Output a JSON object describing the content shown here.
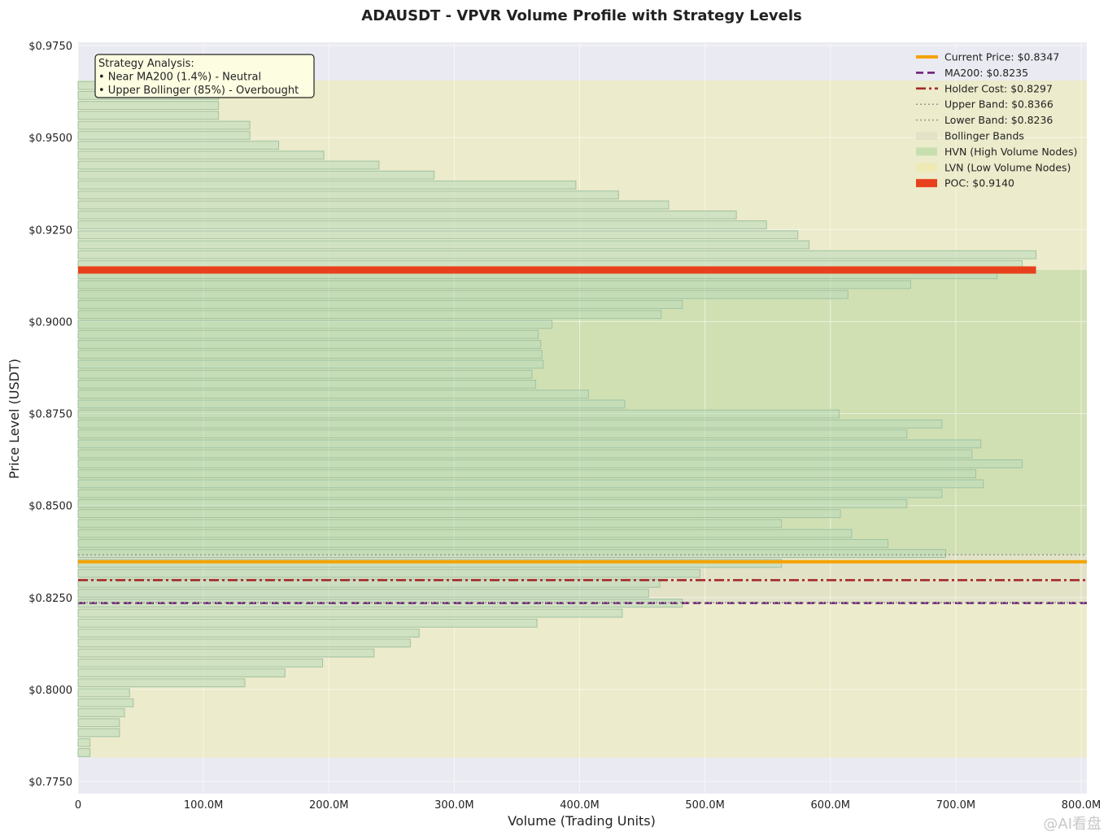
{
  "chart_data": {
    "type": "bar",
    "orientation": "horizontal",
    "title": "ADAUSDT - VPVR Volume Profile with Strategy Levels",
    "xlabel": "Volume (Trading Units)",
    "ylabel": "Price Level (USDT)",
    "xlim": [
      0,
      800
    ],
    "ylim": [
      0.7745,
      0.975
    ],
    "xticks": [
      0,
      100,
      200,
      300,
      400,
      500,
      600,
      700,
      800
    ],
    "xtick_labels": [
      "0",
      "100.0M",
      "200.0M",
      "300.0M",
      "400.0M",
      "500.0M",
      "600.0M",
      "700.0M",
      "800.0M"
    ],
    "yticks": [
      0.975,
      0.95,
      0.925,
      0.9,
      0.875,
      0.85,
      0.825,
      0.8,
      0.775
    ],
    "ytick_labels": [
      "$0.9750",
      "$0.9500",
      "$0.9250",
      "$0.9000",
      "$0.8750",
      "$0.8500",
      "$0.8250",
      "$0.8000",
      "$0.7750"
    ],
    "grid": true,
    "legend_position": "top-right",
    "bins": {
      "price_low": 0.7815,
      "price_high": 0.9655,
      "count": 68,
      "volumes_million": [
        9.5,
        9.5,
        33,
        33,
        37,
        44,
        41,
        133,
        165,
        195,
        236,
        265,
        272,
        366,
        434,
        482,
        455,
        464,
        496,
        561,
        692,
        646,
        617,
        561,
        608,
        661,
        689,
        722,
        716,
        753,
        713,
        720,
        661,
        689,
        607,
        436,
        407,
        365,
        362,
        371,
        370,
        369,
        367,
        378,
        465,
        482,
        614,
        664,
        733,
        753,
        764,
        583,
        574,
        549,
        525,
        471,
        431,
        397,
        284,
        240,
        196,
        160,
        137,
        137,
        112,
        112,
        112,
        112
      ]
    },
    "zones": [
      {
        "name": "LVN (Low Volume Nodes)",
        "from": 0.914,
        "to": 0.9655,
        "color": "#ecebcb"
      },
      {
        "name": "HVN (High Volume Nodes)",
        "from": 0.8366,
        "to": 0.914,
        "color": "#d1e0b3"
      },
      {
        "name": "Bollinger Bands",
        "from": 0.8236,
        "to": 0.8366,
        "color": "#e2e2c7"
      },
      {
        "name": "LVN (Low Volume Nodes)",
        "from": 0.7815,
        "to": 0.8236,
        "color": "#ecebcb"
      }
    ],
    "levels": [
      {
        "key": "poc",
        "label": "POC: $0.9140",
        "price": 0.914,
        "color": "#e8401c",
        "style": "thick"
      },
      {
        "key": "current",
        "label": "Current Price: $0.8347",
        "price": 0.8347,
        "color": "#f5a300",
        "style": "solid"
      },
      {
        "key": "ma200",
        "label": "MA200: $0.8235",
        "price": 0.8235,
        "color": "#701f7a",
        "style": "dashed"
      },
      {
        "key": "holder",
        "label": "Holder Cost: $0.8297",
        "price": 0.8297,
        "color": "#a52a2a",
        "style": "dashdot"
      },
      {
        "key": "upper",
        "label": "Upper Band: $0.8366",
        "price": 0.8366,
        "color": "#8f9a8f",
        "style": "dotted"
      },
      {
        "key": "lower",
        "label": "Lower Band: $0.8236",
        "price": 0.8236,
        "color": "#8f9a8f",
        "style": "dotted"
      }
    ],
    "legend": [
      {
        "label": "Current Price: $0.8347",
        "kind": "line",
        "color": "#f5a300",
        "style": "solid"
      },
      {
        "label": "MA200: $0.8235",
        "kind": "line",
        "color": "#701f7a",
        "style": "dashed"
      },
      {
        "label": "Holder Cost: $0.8297",
        "kind": "line",
        "color": "#a52a2a",
        "style": "dashdot"
      },
      {
        "label": "Upper Band: $0.8366",
        "kind": "line",
        "color": "#8f9a8f",
        "style": "dotted"
      },
      {
        "label": "Lower Band: $0.8236",
        "kind": "line",
        "color": "#8f9a8f",
        "style": "dotted"
      },
      {
        "label": "Bollinger Bands",
        "kind": "patch",
        "color": "#e2e2c7"
      },
      {
        "label": "HVN (High Volume Nodes)",
        "kind": "patch",
        "color": "#c7dfaf"
      },
      {
        "label": "LVN (Low Volume Nodes)",
        "kind": "patch",
        "color": "#efe9b4"
      },
      {
        "label": "POC: $0.9140",
        "kind": "patch",
        "color": "#e8401c"
      }
    ],
    "annotation": {
      "lines": [
        "Strategy Analysis:",
        "• Near MA200 (1.4%) - Neutral",
        "• Upper Bollinger (85%) - Overbought"
      ]
    },
    "colors": {
      "plot_bg": "#eaeaf2",
      "bar_fill": "#b9dab9",
      "bar_edge": "#9fc2a3"
    }
  },
  "watermark": "@AI看盘"
}
